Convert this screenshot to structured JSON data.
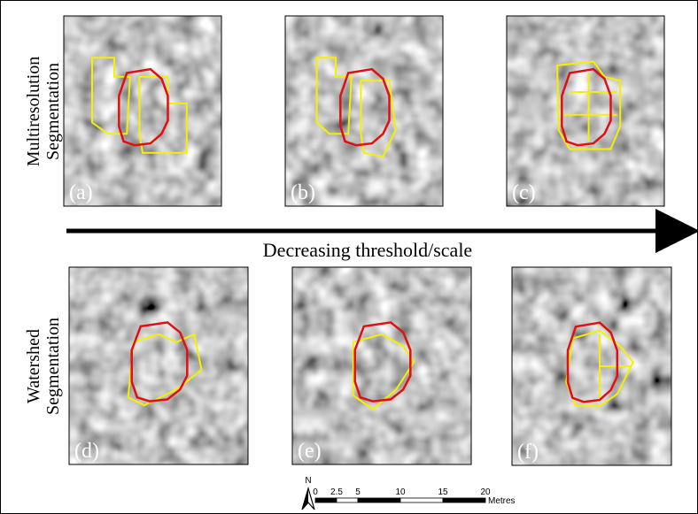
{
  "row_labels": [
    [
      "Multiresolution",
      "Segmentation"
    ],
    [
      "Watershed",
      "Segmentation"
    ]
  ],
  "arrow_label": "Decreasing threshold/scale",
  "panels": [
    {
      "label": "(a)"
    },
    {
      "label": "(b)"
    },
    {
      "label": "(c)"
    },
    {
      "label": "(d)"
    },
    {
      "label": "(e)"
    },
    {
      "label": "(f)"
    }
  ],
  "north": "N",
  "scale": {
    "ticks": [
      0,
      2.5,
      5,
      10,
      15,
      20
    ],
    "unit": "Metres"
  }
}
